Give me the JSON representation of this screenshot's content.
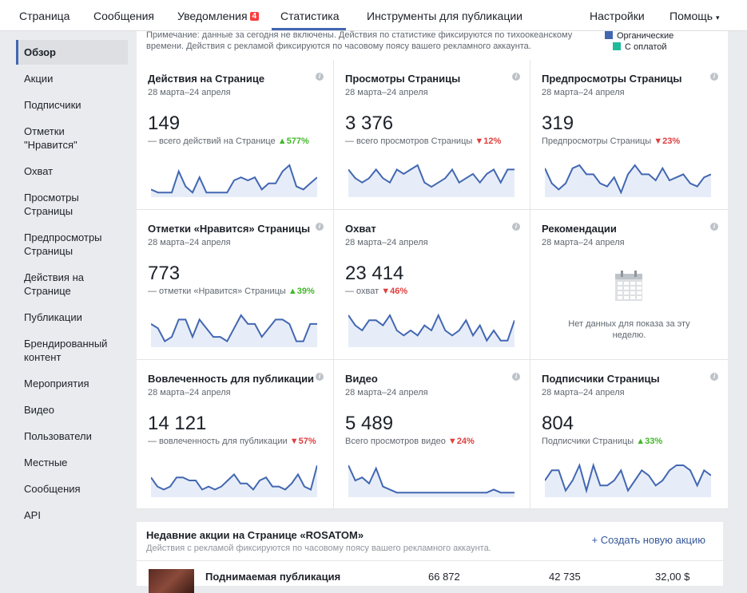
{
  "nav": {
    "items": [
      "Страница",
      "Сообщения",
      "Уведомления",
      "Статистика",
      "Инструменты для публикации"
    ],
    "notifications_badge": "4",
    "settings": "Настройки",
    "help": "Помощь",
    "help_caret": "▾",
    "accent": "#4267b2"
  },
  "sidebar": {
    "items": [
      "Обзор",
      "Акции",
      "Подписчики",
      "Отметки \"Нравится\"",
      "Охват",
      "Просмотры Страницы",
      "Предпросмотры Страницы",
      "Действия на Странице",
      "Публикации",
      "Брендированный контент",
      "Мероприятия",
      "Видео",
      "Пользователи",
      "Местные",
      "Сообщения",
      "API"
    ],
    "selected": "Обзор"
  },
  "note": {
    "text": "Примечание: данные за сегодня не включены. Действия по статистике фиксируются по тихоокеанскому времени. Действия с рекламой фиксируются по часовому поясу вашего рекламного аккаунта.",
    "legend": [
      {
        "label": "Органические",
        "color": "#4267b2"
      },
      {
        "label": "С оплатой",
        "color": "#1fbc9c"
      }
    ]
  },
  "cards": [
    {
      "title": "Действия на Странице",
      "date": "28 марта–24 апреля",
      "value": "149",
      "label": "— всего действий на Странице",
      "change": "577%",
      "dir": "up",
      "spark": [
        2,
        1,
        1,
        1,
        8,
        3,
        1,
        6,
        1,
        1,
        1,
        1,
        5,
        6,
        5,
        6,
        2,
        4,
        4,
        8,
        10,
        3,
        2,
        4,
        6
      ]
    },
    {
      "title": "Просмотры Страницы",
      "date": "28 марта–24 апреля",
      "value": "3 376",
      "label": "— всего просмотров Страницы",
      "change": "12%",
      "dir": "down",
      "spark": [
        6,
        4,
        3,
        4,
        6,
        4,
        3,
        6,
        5,
        6,
        7,
        3,
        2,
        3,
        4,
        6,
        3,
        4,
        5,
        3,
        5,
        6,
        3,
        6,
        6
      ]
    },
    {
      "title": "Предпросмотры Страницы",
      "date": "28 марта–24 апреля",
      "value": "319",
      "label": "Предпросмотры Страницы",
      "change": "23%",
      "dir": "down",
      "spark": [
        9,
        4,
        2,
        4,
        9,
        10,
        7,
        7,
        4,
        3,
        6,
        1,
        7,
        10,
        7,
        7,
        5,
        9,
        5,
        6,
        7,
        4,
        3,
        6,
        7
      ]
    },
    {
      "title": "Отметки «Нравится» Страницы",
      "date": "28 марта–24 апреля",
      "value": "773",
      "label": "— отметки «Нравится» Страницы",
      "change": "39%",
      "dir": "up",
      "spark": [
        5,
        4,
        1,
        2,
        6,
        6,
        2,
        6,
        4,
        2,
        2,
        1,
        4,
        7,
        5,
        5,
        2,
        4,
        6,
        6,
        5,
        1,
        1,
        5,
        5
      ]
    },
    {
      "title": "Охват",
      "date": "28 марта–24 апреля",
      "value": "23 414",
      "label": "— охват",
      "change": "46%",
      "dir": "down",
      "spark": [
        6,
        4,
        3,
        5,
        5,
        4,
        6,
        3,
        2,
        3,
        2,
        4,
        3,
        6,
        3,
        2,
        3,
        5,
        2,
        4,
        1,
        3,
        1,
        1,
        5
      ]
    },
    {
      "title": "Рекомендации",
      "date": "28 марта–24 апреля",
      "nodata": "Нет данных для показа за эту неделю."
    },
    {
      "title": "Вовлеченность для публикации",
      "date": "28 марта–24 апреля",
      "value": "14 121",
      "label": "— вовлеченность для публикации",
      "change": "57%",
      "dir": "down",
      "spark": [
        6,
        3,
        2,
        3,
        6,
        6,
        5,
        5,
        2,
        3,
        2,
        3,
        5,
        7,
        4,
        4,
        2,
        5,
        6,
        3,
        3,
        2,
        4,
        7,
        3,
        2,
        10
      ]
    },
    {
      "title": "Видео",
      "date": "28 марта–24 апреля",
      "value": "5 489",
      "label": "Всего просмотров видео",
      "change": "24%",
      "dir": "down",
      "spark": [
        10,
        5,
        6,
        4,
        9,
        3,
        2,
        1,
        1,
        1,
        1,
        1,
        1,
        1,
        1,
        1,
        1,
        1,
        1,
        1,
        1,
        2,
        1,
        1,
        1
      ]
    },
    {
      "title": "Подписчики Страницы",
      "date": "28 марта–24 апреля",
      "value": "804",
      "label": "Подписчики Страницы",
      "change": "33%",
      "dir": "up",
      "spark": [
        3,
        5,
        5,
        1,
        3,
        6,
        1,
        6,
        2,
        2,
        3,
        5,
        1,
        3,
        5,
        4,
        2,
        3,
        5,
        6,
        6,
        5,
        2,
        5,
        4
      ]
    }
  ],
  "recent": {
    "title": "Недавние акции на Странице «ROSATOM»",
    "subtitle": "Действия с рекламой фиксируются по часовому поясу вашего рекламного аккаунта.",
    "create": "+ Создать новую акцию",
    "row": {
      "name": "Поднимаемая публикация",
      "v1": "66 872",
      "v2": "42 735",
      "v3": "32,00 $"
    }
  }
}
